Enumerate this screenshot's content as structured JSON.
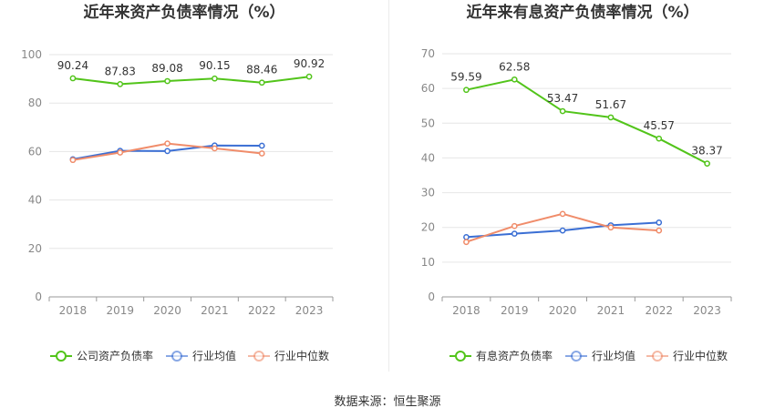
{
  "colors": {
    "green": "#52c41a",
    "blue": "#3b6fd4",
    "orange": "#f08c6a",
    "grid": "#e6e6e6",
    "axis": "#999999"
  },
  "source_label": "数据来源：恒生聚源",
  "chart_data": [
    {
      "type": "line",
      "title": "近年来资产负债率情况（%）",
      "categories": [
        "2018",
        "2019",
        "2020",
        "2021",
        "2022",
        "2023"
      ],
      "ylim": [
        0,
        100
      ],
      "yticks": [
        0,
        20,
        40,
        60,
        80,
        100
      ],
      "grid": true,
      "legend_position": "bottom",
      "series": [
        {
          "name": "公司资产负债率",
          "color": "#52c41a",
          "values": [
            90.24,
            87.83,
            89.08,
            90.15,
            88.46,
            90.92
          ],
          "labels": [
            "90.24",
            "87.83",
            "89.08",
            "90.15",
            "88.46",
            "90.92"
          ]
        },
        {
          "name": "行业均值",
          "color": "#3b6fd4",
          "values": [
            56.8,
            60.3,
            60.2,
            62.5,
            62.4,
            null
          ]
        },
        {
          "name": "行业中位数",
          "color": "#f08c6a",
          "values": [
            56.5,
            59.6,
            63.3,
            61.3,
            59.2,
            null
          ]
        }
      ]
    },
    {
      "type": "line",
      "title": "近年来有息资产负债率情况（%）",
      "categories": [
        "2018",
        "2019",
        "2020",
        "2021",
        "2022",
        "2023"
      ],
      "ylim": [
        0,
        70
      ],
      "yticks": [
        0,
        10,
        20,
        30,
        40,
        50,
        60,
        70
      ],
      "grid": true,
      "legend_position": "bottom",
      "series": [
        {
          "name": "有息资产负债率",
          "color": "#52c41a",
          "values": [
            59.59,
            62.58,
            53.47,
            51.67,
            45.57,
            38.37
          ],
          "labels": [
            "59.59",
            "62.58",
            "53.47",
            "51.67",
            "45.57",
            "38.37"
          ]
        },
        {
          "name": "行业均值",
          "color": "#3b6fd4",
          "values": [
            17.2,
            18.2,
            19.1,
            20.6,
            21.4,
            null
          ]
        },
        {
          "name": "行业中位数",
          "color": "#f08c6a",
          "values": [
            15.8,
            20.4,
            23.9,
            20.0,
            19.1,
            null
          ]
        }
      ]
    }
  ]
}
